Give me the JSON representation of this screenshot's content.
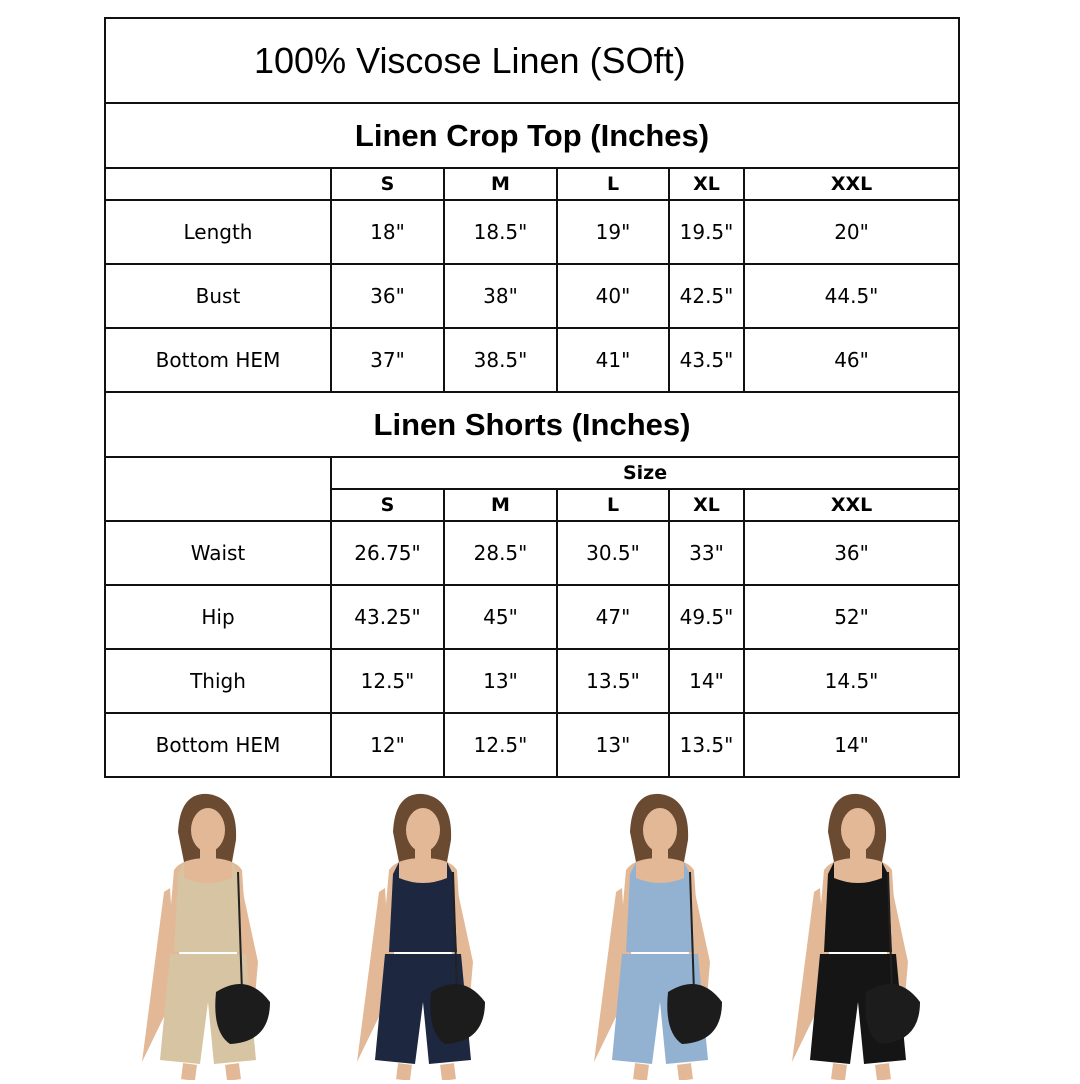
{
  "title": "100% Viscose Linen (SOft)",
  "sizes": [
    "S",
    "M",
    "L",
    "XL",
    "XXL"
  ],
  "crop_top": {
    "heading": "Linen Crop Top (Inches)",
    "rows": [
      {
        "label": "Length",
        "values": [
          "18\"",
          "18.5\"",
          "19\"",
          "19.5\"",
          "20\""
        ]
      },
      {
        "label": "Bust",
        "values": [
          "36\"",
          "38\"",
          "40\"",
          "42.5\"",
          "44.5\""
        ]
      },
      {
        "label": "Bottom HEM",
        "values": [
          "37\"",
          "38.5\"",
          "41\"",
          "43.5\"",
          "46\""
        ]
      }
    ]
  },
  "shorts": {
    "heading": "Linen Shorts (Inches)",
    "size_label": "Size",
    "rows": [
      {
        "label": "Waist",
        "values": [
          "26.75\"",
          "28.5\"",
          "30.5\"",
          "33\"",
          "36\""
        ]
      },
      {
        "label": "Hip",
        "values": [
          "43.25\"",
          "45\"",
          "47\"",
          "49.5\"",
          "52\""
        ]
      },
      {
        "label": "Thigh",
        "values": [
          "12.5\"",
          "13\"",
          "13.5\"",
          "14\"",
          "14.5\""
        ]
      },
      {
        "label": "Bottom HEM",
        "values": [
          "12\"",
          "12.5\"",
          "13\"",
          "13.5\"",
          "14\""
        ]
      }
    ]
  },
  "models": [
    {
      "color_name": "khaki",
      "color": "#d6c4a2"
    },
    {
      "color_name": "navy",
      "color": "#1e2740"
    },
    {
      "color_name": "light-blue",
      "color": "#93b2d2"
    },
    {
      "color_name": "black",
      "color": "#151515"
    }
  ]
}
